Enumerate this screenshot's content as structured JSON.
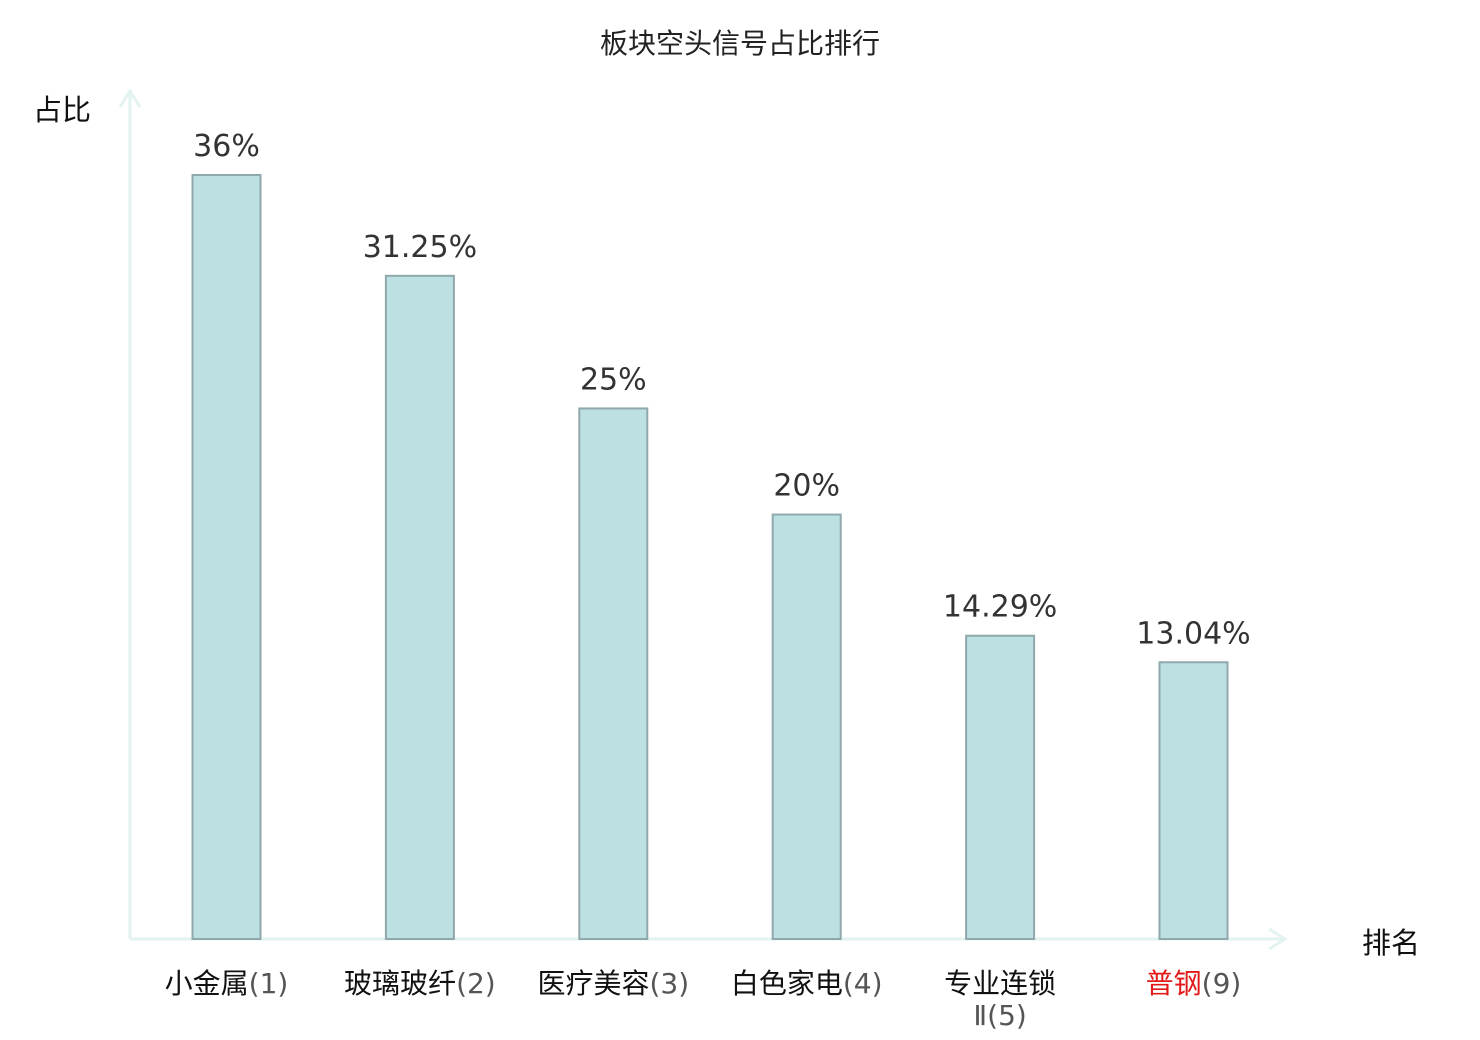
{
  "chart_data": {
    "type": "bar",
    "title": "板块空头信号占比排行",
    "ylabel": "占比",
    "xlabel": "排名",
    "ylim": [
      0,
      40
    ],
    "grid": false,
    "legend": "none",
    "categories": [
      {
        "name": "小金属",
        "rank": "(1)",
        "highlight": false
      },
      {
        "name": "玻璃玻纤",
        "rank": "(2)",
        "highlight": false
      },
      {
        "name": "医疗美容",
        "rank": "(3)",
        "highlight": false
      },
      {
        "name": "白色家电",
        "rank": "(4)",
        "highlight": false
      },
      {
        "name": "专业连锁",
        "name2": "Ⅱ",
        "rank": "(5)",
        "highlight": false
      },
      {
        "name": "普钢",
        "rank": "(9)",
        "highlight": true
      }
    ],
    "values": [
      36,
      31.25,
      25,
      20,
      14.29,
      13.04
    ],
    "value_labels": [
      "36%",
      "31.25%",
      "25%",
      "20%",
      "14.29%",
      "13.04%"
    ]
  },
  "colors": {
    "bar_fill": "#bde0e2",
    "bar_stroke": "#8fa8ab",
    "axis": "#e3f3f1",
    "highlight_text": "#e11919"
  }
}
